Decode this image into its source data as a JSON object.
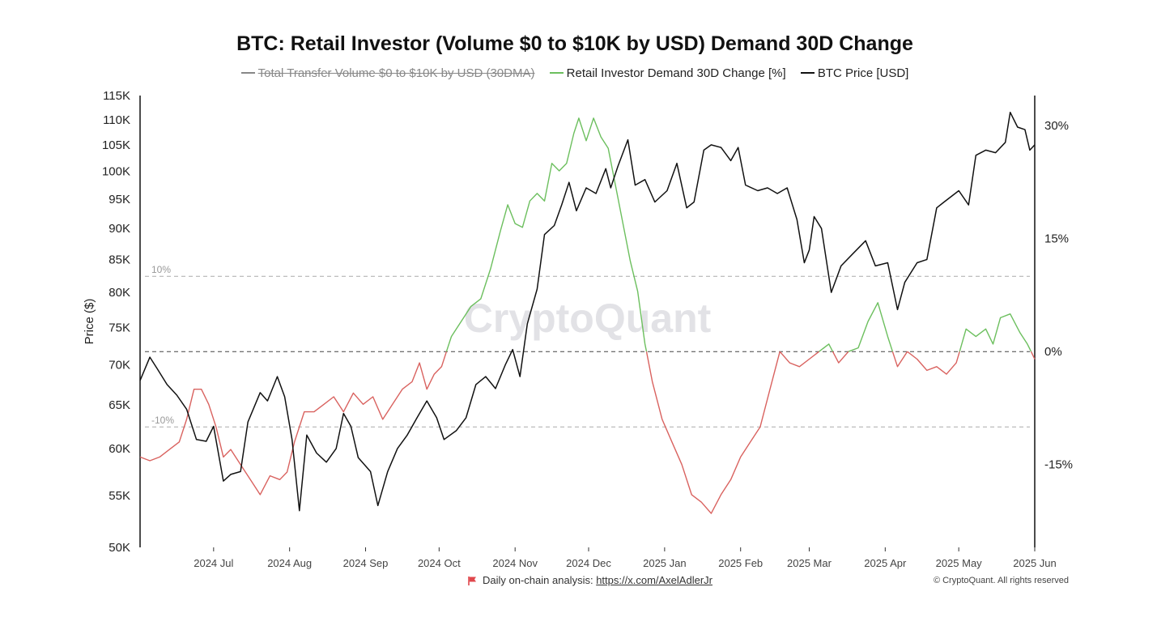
{
  "chart_data": {
    "type": "line",
    "title": "BTC: Retail Investor (Volume $0 to $10K by USD) Demand 30D Change",
    "legend": [
      {
        "label": "Total Transfer Volume $0 to $10K by USD (30DMA)",
        "color": "#888888",
        "hidden": true
      },
      {
        "label": "Retail Investor Demand 30D Change [%]",
        "color": "#6cbf5e",
        "hidden": false
      },
      {
        "label": "BTC Price [USD]",
        "color": "#111111",
        "hidden": false
      }
    ],
    "left_axis": {
      "label": "Price ($)",
      "scale": "log",
      "range": [
        50000,
        115000
      ],
      "ticks": [
        50000,
        55000,
        60000,
        65000,
        70000,
        75000,
        80000,
        85000,
        90000,
        95000,
        100000,
        105000,
        110000,
        115000
      ],
      "tick_labels": [
        "50K",
        "55K",
        "60K",
        "65K",
        "70K",
        "75K",
        "80K",
        "85K",
        "90K",
        "95K",
        "100K",
        "105K",
        "110K",
        "115K"
      ]
    },
    "right_axis": {
      "label": "",
      "range": [
        -26,
        34
      ],
      "ticks": [
        -15,
        0,
        15,
        30
      ],
      "tick_labels": [
        "-15%",
        "0%",
        "15%",
        "30%"
      ]
    },
    "x_axis": {
      "range": [
        "2024-06-01",
        "2025-06-01"
      ],
      "ticks": [
        "2024-07-01",
        "2024-08-01",
        "2024-09-01",
        "2024-10-01",
        "2024-11-01",
        "2024-12-01",
        "2025-01-01",
        "2025-02-01",
        "2025-03-01",
        "2025-04-01",
        "2025-05-01",
        "2025-06-01"
      ],
      "tick_labels": [
        "2024 Jul",
        "2024 Aug",
        "2024 Sep",
        "2024 Oct",
        "2024 Nov",
        "2024 Dec",
        "2025 Jan",
        "2025 Feb",
        "2025 Mar",
        "2025 Apr",
        "2025 May",
        "2025 Jun"
      ]
    },
    "reference_lines": [
      {
        "value": 10,
        "label": "10%"
      },
      {
        "value": 0,
        "label": ""
      },
      {
        "value": -10,
        "label": "-10%"
      }
    ],
    "positive_color": "#6cbf5e",
    "negative_color": "#d9625f",
    "series": [
      {
        "name": "BTC Price [USD]",
        "axis": "left",
        "color": "#111111",
        "points": [
          [
            "2024-06-01",
            68000
          ],
          [
            "2024-06-05",
            71000
          ],
          [
            "2024-06-08",
            69500
          ],
          [
            "2024-06-12",
            67500
          ],
          [
            "2024-06-16",
            66200
          ],
          [
            "2024-06-20",
            64500
          ],
          [
            "2024-06-24",
            61000
          ],
          [
            "2024-06-28",
            60800
          ],
          [
            "2024-07-01",
            62500
          ],
          [
            "2024-07-05",
            56500
          ],
          [
            "2024-07-08",
            57200
          ],
          [
            "2024-07-12",
            57500
          ],
          [
            "2024-07-15",
            63000
          ],
          [
            "2024-07-20",
            66500
          ],
          [
            "2024-07-23",
            65500
          ],
          [
            "2024-07-27",
            68500
          ],
          [
            "2024-07-30",
            66000
          ],
          [
            "2024-08-02",
            61000
          ],
          [
            "2024-08-05",
            53500
          ],
          [
            "2024-08-08",
            61500
          ],
          [
            "2024-08-12",
            59500
          ],
          [
            "2024-08-16",
            58500
          ],
          [
            "2024-08-20",
            60000
          ],
          [
            "2024-08-23",
            64000
          ],
          [
            "2024-08-26",
            62500
          ],
          [
            "2024-08-29",
            59000
          ],
          [
            "2024-09-03",
            57500
          ],
          [
            "2024-09-06",
            54000
          ],
          [
            "2024-09-10",
            57500
          ],
          [
            "2024-09-14",
            60000
          ],
          [
            "2024-09-18",
            61500
          ],
          [
            "2024-09-22",
            63500
          ],
          [
            "2024-09-26",
            65500
          ],
          [
            "2024-09-30",
            63500
          ],
          [
            "2024-10-03",
            61000
          ],
          [
            "2024-10-08",
            62000
          ],
          [
            "2024-10-12",
            63500
          ],
          [
            "2024-10-16",
            67500
          ],
          [
            "2024-10-20",
            68500
          ],
          [
            "2024-10-24",
            67000
          ],
          [
            "2024-10-28",
            70000
          ],
          [
            "2024-10-31",
            72000
          ],
          [
            "2024-11-03",
            68500
          ],
          [
            "2024-11-06",
            75500
          ],
          [
            "2024-11-10",
            80500
          ],
          [
            "2024-11-13",
            89000
          ],
          [
            "2024-11-17",
            90500
          ],
          [
            "2024-11-20",
            94000
          ],
          [
            "2024-11-23",
            98000
          ],
          [
            "2024-11-26",
            93000
          ],
          [
            "2024-11-30",
            97000
          ],
          [
            "2024-12-04",
            96000
          ],
          [
            "2024-12-08",
            100500
          ],
          [
            "2024-12-10",
            97000
          ],
          [
            "2024-12-13",
            101000
          ],
          [
            "2024-12-17",
            106000
          ],
          [
            "2024-12-20",
            97500
          ],
          [
            "2024-12-24",
            98500
          ],
          [
            "2024-12-28",
            94500
          ],
          [
            "2025-01-02",
            96500
          ],
          [
            "2025-01-06",
            101500
          ],
          [
            "2025-01-10",
            93500
          ],
          [
            "2025-01-13",
            94500
          ],
          [
            "2025-01-17",
            104000
          ],
          [
            "2025-01-20",
            105000
          ],
          [
            "2025-01-24",
            104500
          ],
          [
            "2025-01-28",
            102000
          ],
          [
            "2025-01-31",
            104500
          ],
          [
            "2025-02-03",
            97500
          ],
          [
            "2025-02-08",
            96500
          ],
          [
            "2025-02-12",
            97000
          ],
          [
            "2025-02-16",
            96000
          ],
          [
            "2025-02-20",
            97000
          ],
          [
            "2025-02-24",
            91500
          ],
          [
            "2025-02-27",
            84500
          ],
          [
            "2025-03-01",
            86500
          ],
          [
            "2025-03-03",
            92000
          ],
          [
            "2025-03-06",
            90000
          ],
          [
            "2025-03-10",
            80000
          ],
          [
            "2025-03-14",
            84000
          ],
          [
            "2025-03-19",
            86000
          ],
          [
            "2025-03-24",
            88000
          ],
          [
            "2025-03-28",
            84000
          ],
          [
            "2025-04-02",
            84500
          ],
          [
            "2025-04-06",
            77500
          ],
          [
            "2025-04-09",
            81500
          ],
          [
            "2025-04-14",
            84500
          ],
          [
            "2025-04-18",
            85000
          ],
          [
            "2025-04-22",
            93500
          ],
          [
            "2025-04-25",
            94500
          ],
          [
            "2025-05-01",
            96500
          ],
          [
            "2025-05-05",
            94000
          ],
          [
            "2025-05-08",
            103000
          ],
          [
            "2025-05-12",
            104000
          ],
          [
            "2025-05-16",
            103500
          ],
          [
            "2025-05-20",
            105500
          ],
          [
            "2025-05-22",
            111500
          ],
          [
            "2025-05-25",
            108500
          ],
          [
            "2025-05-28",
            108000
          ],
          [
            "2025-05-30",
            104000
          ],
          [
            "2025-06-01",
            105000
          ]
        ]
      },
      {
        "name": "Retail Investor Demand 30D Change [%]",
        "axis": "right",
        "color": "#6cbf5e",
        "points": [
          [
            "2024-06-01",
            -14
          ],
          [
            "2024-06-05",
            -14.5
          ],
          [
            "2024-06-09",
            -14
          ],
          [
            "2024-06-13",
            -13
          ],
          [
            "2024-06-17",
            -12
          ],
          [
            "2024-06-20",
            -9
          ],
          [
            "2024-06-23",
            -5
          ],
          [
            "2024-06-26",
            -5
          ],
          [
            "2024-06-29",
            -7
          ],
          [
            "2024-07-02",
            -10
          ],
          [
            "2024-07-05",
            -14
          ],
          [
            "2024-07-08",
            -13
          ],
          [
            "2024-07-12",
            -15
          ],
          [
            "2024-07-16",
            -17
          ],
          [
            "2024-07-20",
            -19
          ],
          [
            "2024-07-24",
            -16.5
          ],
          [
            "2024-07-28",
            -17
          ],
          [
            "2024-07-31",
            -16
          ],
          [
            "2024-08-03",
            -12
          ],
          [
            "2024-08-07",
            -8
          ],
          [
            "2024-08-11",
            -8
          ],
          [
            "2024-08-15",
            -7
          ],
          [
            "2024-08-19",
            -6
          ],
          [
            "2024-08-23",
            -8
          ],
          [
            "2024-08-27",
            -5.5
          ],
          [
            "2024-08-31",
            -7
          ],
          [
            "2024-09-04",
            -6
          ],
          [
            "2024-09-08",
            -9
          ],
          [
            "2024-09-12",
            -7
          ],
          [
            "2024-09-16",
            -5
          ],
          [
            "2024-09-20",
            -4
          ],
          [
            "2024-09-23",
            -1.5
          ],
          [
            "2024-09-26",
            -5
          ],
          [
            "2024-09-29",
            -3
          ],
          [
            "2024-10-02",
            -2
          ],
          [
            "2024-10-06",
            2
          ],
          [
            "2024-10-10",
            4
          ],
          [
            "2024-10-14",
            6
          ],
          [
            "2024-10-18",
            7
          ],
          [
            "2024-10-22",
            11
          ],
          [
            "2024-10-26",
            16
          ],
          [
            "2024-10-29",
            19.5
          ],
          [
            "2024-11-01",
            17
          ],
          [
            "2024-11-04",
            16.5
          ],
          [
            "2024-11-07",
            20
          ],
          [
            "2024-11-10",
            21
          ],
          [
            "2024-11-13",
            20
          ],
          [
            "2024-11-16",
            25
          ],
          [
            "2024-11-19",
            24
          ],
          [
            "2024-11-22",
            25
          ],
          [
            "2024-11-25",
            29
          ],
          [
            "2024-11-27",
            31
          ],
          [
            "2024-11-30",
            28
          ],
          [
            "2024-12-03",
            31
          ],
          [
            "2024-12-06",
            28.5
          ],
          [
            "2024-12-09",
            27
          ],
          [
            "2024-12-12",
            22
          ],
          [
            "2024-12-15",
            17
          ],
          [
            "2024-12-18",
            12
          ],
          [
            "2024-12-21",
            8
          ],
          [
            "2024-12-24",
            1
          ],
          [
            "2024-12-27",
            -4
          ],
          [
            "2024-12-31",
            -9
          ],
          [
            "2025-01-04",
            -12
          ],
          [
            "2025-01-08",
            -15
          ],
          [
            "2025-01-12",
            -19
          ],
          [
            "2025-01-16",
            -20
          ],
          [
            "2025-01-20",
            -21.5
          ],
          [
            "2025-01-24",
            -19
          ],
          [
            "2025-01-28",
            -17
          ],
          [
            "2025-02-01",
            -14
          ],
          [
            "2025-02-05",
            -12
          ],
          [
            "2025-02-09",
            -10
          ],
          [
            "2025-02-13",
            -5
          ],
          [
            "2025-02-17",
            0
          ],
          [
            "2025-02-21",
            -1.5
          ],
          [
            "2025-02-25",
            -2
          ],
          [
            "2025-03-01",
            -1
          ],
          [
            "2025-03-05",
            0
          ],
          [
            "2025-03-09",
            1
          ],
          [
            "2025-03-13",
            -1.5
          ],
          [
            "2025-03-17",
            0
          ],
          [
            "2025-03-21",
            0.5
          ],
          [
            "2025-03-25",
            4
          ],
          [
            "2025-03-29",
            6.5
          ],
          [
            "2025-04-02",
            2
          ],
          [
            "2025-04-06",
            -2
          ],
          [
            "2025-04-10",
            0
          ],
          [
            "2025-04-14",
            -1
          ],
          [
            "2025-04-18",
            -2.5
          ],
          [
            "2025-04-22",
            -2
          ],
          [
            "2025-04-26",
            -3
          ],
          [
            "2025-04-30",
            -1.5
          ],
          [
            "2025-05-04",
            3
          ],
          [
            "2025-05-08",
            2
          ],
          [
            "2025-05-12",
            3
          ],
          [
            "2025-05-15",
            1
          ],
          [
            "2025-05-18",
            4.5
          ],
          [
            "2025-05-22",
            5
          ],
          [
            "2025-05-26",
            2.5
          ],
          [
            "2025-05-29",
            1
          ],
          [
            "2025-06-01",
            -1
          ]
        ]
      }
    ],
    "annotations": [
      "CryptoQuant"
    ]
  },
  "footer": {
    "text": "Daily on-chain analysis:",
    "url": "https://x.com/AxelAdlerJr",
    "copyright": "© CryptoQuant. All rights reserved"
  }
}
